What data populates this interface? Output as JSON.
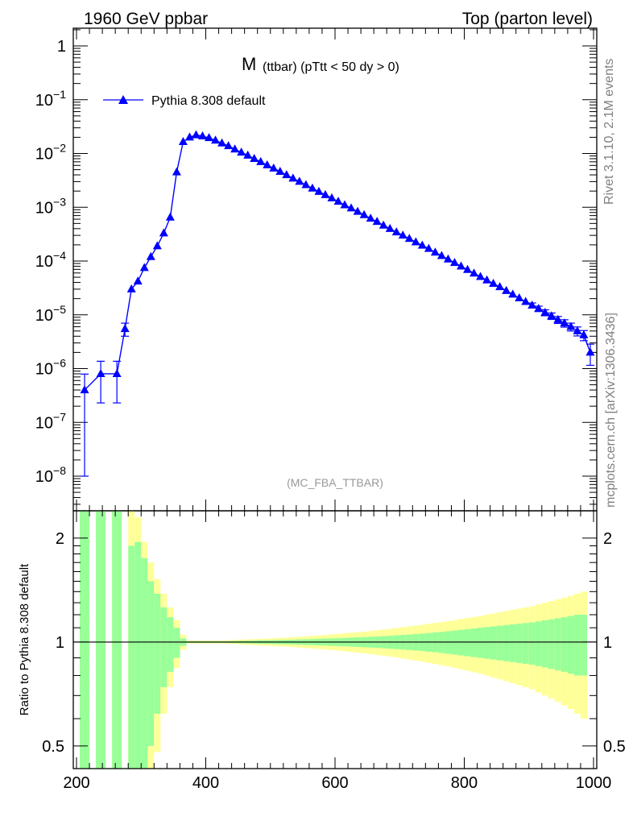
{
  "header": {
    "left": "1960 GeV ppbar",
    "right": "Top (parton level)"
  },
  "side_labels": {
    "rivet": "Rivet 3.1.10,  2.1M events",
    "mcplots": "mcplots.cern.ch [arXiv:1306.3436]"
  },
  "title_main": "M",
  "title_sub": "(ttbar) (pTtt < 50 dy > 0)",
  "analysis_tag": "(MC_FBA_TTBAR)",
  "legend": {
    "label": "Pythia 8.308 default"
  },
  "ratio_ylabel": "Ratio to Pythia 8.308 default",
  "colors": {
    "series": "#0000ff",
    "band_inner": "#99ff99",
    "band_outer": "#ffff99",
    "axis": "#000000",
    "side_text": "#808080"
  },
  "chart_data": {
    "type": "line",
    "log_y": true,
    "xlim": [
      195,
      1005
    ],
    "ylim": [
      3e-09,
      2
    ],
    "x_ticks": [
      "200",
      "400",
      "600",
      "800",
      "1000"
    ],
    "y_ticks": [
      "1",
      "10^-1",
      "10^-2",
      "10^-3",
      "10^-4",
      "10^-5",
      "10^-6",
      "10^-7",
      "10^-8"
    ],
    "legend_position": "top-left",
    "series": [
      {
        "name": "Pythia 8.308 default",
        "marker": "triangle",
        "x": [
          212.5,
          237.5,
          262.5,
          275,
          285,
          295,
          305,
          315,
          325,
          335,
          345,
          355,
          365,
          375,
          385,
          395,
          405,
          415,
          425,
          435,
          445,
          455,
          465,
          475,
          485,
          495,
          505,
          515,
          525,
          535,
          545,
          555,
          565,
          575,
          585,
          595,
          605,
          615,
          625,
          635,
          645,
          655,
          665,
          675,
          685,
          695,
          705,
          715,
          725,
          735,
          745,
          755,
          765,
          775,
          785,
          795,
          805,
          815,
          825,
          835,
          845,
          855,
          865,
          875,
          885,
          895,
          905,
          915,
          925,
          935,
          945,
          955,
          965,
          975,
          985,
          995
        ],
        "y": [
          4e-07,
          8e-07,
          8e-07,
          5.5e-06,
          3e-05,
          4.2e-05,
          7.5e-05,
          0.00012,
          0.00019,
          0.00033,
          0.00065,
          0.0045,
          0.0165,
          0.02,
          0.022,
          0.021,
          0.0195,
          0.0175,
          0.0155,
          0.0138,
          0.012,
          0.0105,
          0.0092,
          0.008,
          0.007,
          0.0061,
          0.0053,
          0.0046,
          0.004,
          0.00345,
          0.003,
          0.0026,
          0.00225,
          0.00195,
          0.0017,
          0.00148,
          0.00128,
          0.0011,
          0.00096,
          0.00083,
          0.00072,
          0.00062,
          0.00054,
          0.00046,
          0.0004,
          0.000345,
          0.0003,
          0.00026,
          0.000225,
          0.000195,
          0.00017,
          0.000145,
          0.000125,
          0.000108,
          9.3e-05,
          8e-05,
          6.9e-05,
          5.9e-05,
          5.1e-05,
          4.4e-05,
          3.8e-05,
          3.3e-05,
          2.8e-05,
          2.4e-05,
          2.05e-05,
          1.75e-05,
          1.5e-05,
          1.3e-05,
          1.1e-05,
          9.5e-06,
          8.1e-06,
          7e-06,
          6e-06,
          5e-06,
          4.2e-06,
          2e-06
        ],
        "err": [
          3.9e-07,
          5.7e-07,
          5.7e-07,
          1.5e-06,
          3e-06,
          3.5e-06,
          4.5e-06,
          6e-06,
          8e-06,
          1.1e-05,
          1.6e-05,
          4e-05,
          8e-05,
          9e-05,
          9e-05,
          9e-05,
          8e-05,
          8e-05,
          7e-05,
          7e-05,
          6e-05,
          6e-05,
          5e-05,
          5e-05,
          4.5e-05,
          4e-05,
          3.7e-05,
          3.4e-05,
          3.1e-05,
          2.8e-05,
          2.6e-05,
          2.4e-05,
          2.2e-05,
          2e-05,
          1.9e-05,
          1.7e-05,
          1.6e-05,
          1.5e-05,
          1.4e-05,
          1.3e-05,
          1.2e-05,
          1.1e-05,
          1e-05,
          9.5e-06,
          8.8e-06,
          8.1e-06,
          7.5e-06,
          7e-06,
          6.5e-06,
          6e-06,
          5.6e-06,
          5.2e-06,
          4.8e-06,
          4.4e-06,
          4.1e-06,
          3.8e-06,
          3.5e-06,
          3.2e-06,
          3e-06,
          2.8e-06,
          2.6e-06,
          2.4e-06,
          2.2e-06,
          2e-06,
          1.9e-06,
          1.75e-06,
          1.6e-06,
          1.5e-06,
          1.4e-06,
          1.3e-06,
          1.2e-06,
          1.1e-06,
          1e-06,
          9.5e-07,
          9e-07,
          8.5e-07
        ]
      }
    ],
    "ratio": {
      "ylabel": "Ratio to Pythia 8.308 default",
      "ylim": [
        0.43,
        2.4
      ],
      "y_ticks": [
        "0.5",
        "1",
        "2"
      ],
      "bin_edges": [
        205,
        220,
        230,
        245,
        255,
        270,
        280,
        290,
        300,
        310,
        320,
        330,
        340,
        350,
        360,
        370,
        380,
        390,
        400,
        410,
        420,
        430,
        440,
        450,
        460,
        470,
        480,
        490,
        500,
        510,
        520,
        530,
        540,
        550,
        560,
        570,
        580,
        590,
        600,
        610,
        620,
        630,
        640,
        650,
        660,
        670,
        680,
        690,
        700,
        710,
        720,
        730,
        740,
        750,
        760,
        770,
        780,
        790,
        800,
        810,
        820,
        830,
        840,
        850,
        860,
        870,
        880,
        890,
        900,
        910,
        920,
        930,
        940,
        950,
        960,
        970,
        980,
        990,
        1000
      ],
      "inner": [
        1.95,
        0,
        1.7,
        0,
        1.7,
        0,
        0.9,
        0.95,
        0.75,
        0.5,
        0.38,
        0.26,
        0.18,
        0.1,
        0.025,
        0.005,
        0.005,
        0.005,
        0.005,
        0.005,
        0.005,
        0.006,
        0.007,
        0.008,
        0.009,
        0.01,
        0.011,
        0.012,
        0.013,
        0.014,
        0.015,
        0.016,
        0.018,
        0.019,
        0.02,
        0.022,
        0.023,
        0.025,
        0.026,
        0.028,
        0.03,
        0.032,
        0.034,
        0.036,
        0.038,
        0.04,
        0.043,
        0.046,
        0.049,
        0.052,
        0.055,
        0.058,
        0.062,
        0.066,
        0.07,
        0.075,
        0.08,
        0.085,
        0.09,
        0.095,
        0.1,
        0.105,
        0.11,
        0.115,
        0.12,
        0.125,
        0.13,
        0.135,
        0.14,
        0.148,
        0.156,
        0.164,
        0.172,
        0.18,
        0.19,
        0.2,
        0.2
      ],
      "outer": [
        2.0,
        0,
        2.0,
        0,
        2.0,
        0,
        2.0,
        1.3,
        0.95,
        0.7,
        0.52,
        0.38,
        0.26,
        0.16,
        0.05,
        0.01,
        0.01,
        0.01,
        0.01,
        0.01,
        0.01,
        0.012,
        0.014,
        0.016,
        0.018,
        0.02,
        0.022,
        0.024,
        0.026,
        0.028,
        0.03,
        0.033,
        0.036,
        0.039,
        0.042,
        0.045,
        0.048,
        0.052,
        0.056,
        0.06,
        0.064,
        0.068,
        0.072,
        0.077,
        0.082,
        0.087,
        0.092,
        0.098,
        0.104,
        0.11,
        0.116,
        0.122,
        0.129,
        0.136,
        0.143,
        0.15,
        0.158,
        0.166,
        0.174,
        0.182,
        0.19,
        0.2,
        0.21,
        0.22,
        0.23,
        0.24,
        0.25,
        0.26,
        0.27,
        0.285,
        0.3,
        0.315,
        0.33,
        0.345,
        0.36,
        0.38,
        0.4
      ]
    }
  }
}
